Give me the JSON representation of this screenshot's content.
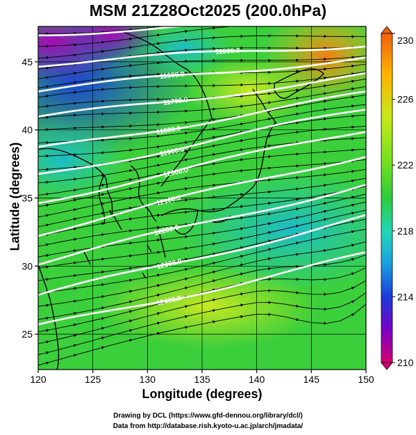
{
  "title": "MSM 21Z28Oct2025 (200.0hPa)",
  "axes": {
    "xlabel": "Longitude (degrees)",
    "ylabel": "Latitude  (degrees)",
    "xticks": [
      "120",
      "125",
      "130",
      "135",
      "140",
      "145",
      "150"
    ],
    "yticks": [
      "25",
      "30",
      "35",
      "40",
      "45"
    ],
    "xlim": [
      120,
      150
    ],
    "ylim": [
      22.4,
      47.6
    ]
  },
  "colorbar": {
    "labels": [
      "230",
      "226",
      "222",
      "218",
      "214",
      "210"
    ],
    "range": [
      210,
      230
    ],
    "colors": [
      "#d40070",
      "#7a00c8",
      "#1a3cd8",
      "#1aa0e0",
      "#22d8b8",
      "#2ccc3a",
      "#6ee020",
      "#c8e818",
      "#ffb000",
      "#f06010"
    ]
  },
  "contours": {
    "labels": [
      "11400.0",
      "11500.0",
      "11600.0",
      "11700.0",
      "11800.0",
      "11900.0",
      "12000.0",
      "12100.0",
      "12200.0",
      "12300.0",
      "12400.0"
    ]
  },
  "credits": {
    "line1": "Drawing by DCL (https://www.gfd-dennou.org/library/dcl/)",
    "line2": "Data from http://database.rish.kyoto-u.ac.jp/arch/jmadata/"
  }
}
